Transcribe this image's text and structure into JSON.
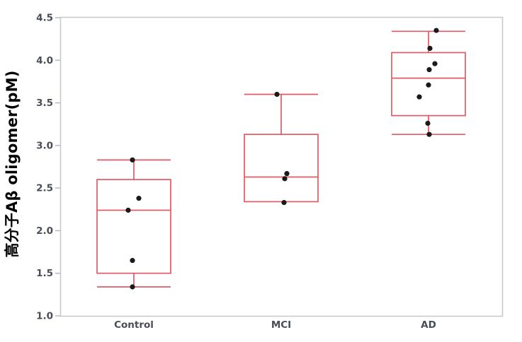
{
  "figure": {
    "background": "#ffffff",
    "frame_color": "#c7c7c7",
    "tick_mark_color": "#b9b9b9",
    "axis_text_color": "#494d56",
    "ylabel_color": "#060606"
  },
  "chart_data": {
    "type": "box",
    "title": "",
    "xlabel": "",
    "ylabel": "高分子Aβ oligomer(pM)",
    "ylim": [
      1.0,
      4.5
    ],
    "grid": false,
    "legend": false,
    "box_color": "#e25a64",
    "point_color": "#1a1a1a",
    "yticks": [
      {
        "value": 4.5,
        "label": "4.5"
      },
      {
        "value": 4.0,
        "label": "4.0"
      },
      {
        "value": 3.5,
        "label": "3.5"
      },
      {
        "value": 3.0,
        "label": "3.0"
      },
      {
        "value": 2.5,
        "label": "2.5"
      },
      {
        "value": 2.0,
        "label": "2.0"
      },
      {
        "value": 1.5,
        "label": "1.5"
      },
      {
        "value": 1.0,
        "label": "1.0"
      }
    ],
    "categories": [
      "Control",
      "MCI",
      "AD"
    ],
    "groups": [
      {
        "category": "Control",
        "whisker_low": 1.34,
        "q1": 1.5,
        "median": 2.24,
        "q3": 2.6,
        "whisker_high": 2.83,
        "points": [
          {
            "value": 2.83,
            "dx": -2
          },
          {
            "value": 2.38,
            "dx": 7
          },
          {
            "value": 2.24,
            "dx": -8
          },
          {
            "value": 1.65,
            "dx": -2
          },
          {
            "value": 1.34,
            "dx": -2
          }
        ]
      },
      {
        "category": "MCI",
        "whisker_low": null,
        "q1": 2.34,
        "median": 2.63,
        "q3": 3.13,
        "whisker_high": 3.6,
        "points": [
          {
            "value": 3.6,
            "dx": -6
          },
          {
            "value": 2.67,
            "dx": 8
          },
          {
            "value": 2.61,
            "dx": 5
          },
          {
            "value": 2.33,
            "dx": 4
          }
        ]
      },
      {
        "category": "AD",
        "whisker_low": 3.13,
        "q1": 3.35,
        "median": 3.79,
        "q3": 4.09,
        "whisker_high": 4.34,
        "points": [
          {
            "value": 4.35,
            "dx": 11
          },
          {
            "value": 4.14,
            "dx": 2
          },
          {
            "value": 3.96,
            "dx": 9
          },
          {
            "value": 3.89,
            "dx": 1
          },
          {
            "value": 3.71,
            "dx": 0
          },
          {
            "value": 3.57,
            "dx": -13
          },
          {
            "value": 3.26,
            "dx": -1
          },
          {
            "value": 3.13,
            "dx": 1
          }
        ]
      }
    ]
  }
}
